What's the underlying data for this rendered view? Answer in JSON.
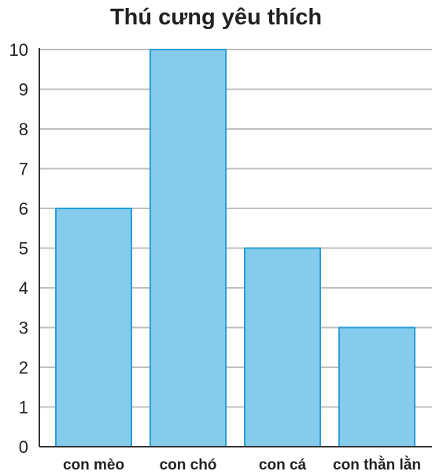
{
  "chart_data": {
    "type": "bar",
    "title": "Thú cưng yêu thích",
    "categories": [
      "con mèo",
      "con chó",
      "con cá",
      "con thằn lằn"
    ],
    "values": [
      6,
      10,
      5,
      3
    ],
    "ylim": [
      0,
      10
    ],
    "yticks": [
      0,
      1,
      2,
      3,
      4,
      5,
      6,
      7,
      8,
      9,
      10
    ],
    "grid": true,
    "legend": "none",
    "bar_color": "#85CCEC",
    "bar_edge_color": "#2A9FD6",
    "grid_color": "#BFBFBF",
    "axis_color": "#333333"
  }
}
